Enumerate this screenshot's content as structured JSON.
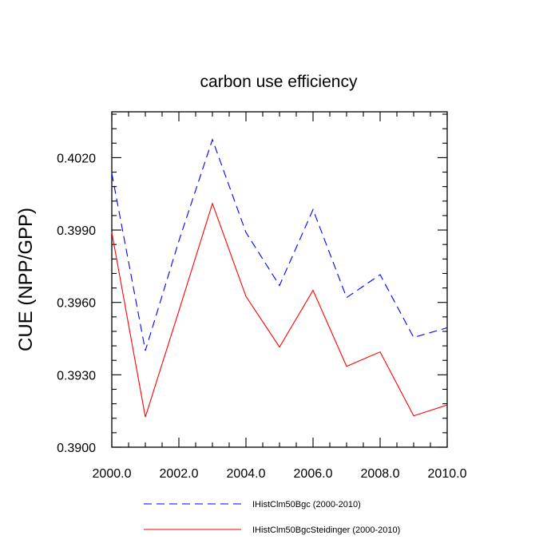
{
  "chart_data": {
    "type": "line",
    "title": "carbon use efficiency",
    "xlabel": "",
    "ylabel": "CUE  (NPP/GPP)",
    "xlim": [
      2000,
      2010
    ],
    "ylim": [
      0.39,
      0.4039
    ],
    "x_ticks": [
      2000,
      2002,
      2004,
      2006,
      2008,
      2010
    ],
    "x_tick_labels": [
      "2000.0",
      "2002.0",
      "2004.0",
      "2006.0",
      "2008.0",
      "2010.0"
    ],
    "y_ticks": [
      0.39,
      0.393,
      0.396,
      0.399,
      0.402
    ],
    "y_tick_labels": [
      "0.3900",
      "0.3930",
      "0.3960",
      "0.3990",
      "0.4020"
    ],
    "x": [
      2000,
      2001,
      2002,
      2003,
      2004,
      2005,
      2006,
      2007,
      2008,
      2009,
      2010
    ],
    "series": [
      {
        "name": "IHistClm50Bgc (2000-2010)",
        "values": [
          0.40135,
          0.394,
          0.39855,
          0.40275,
          0.3989,
          0.3967,
          0.39985,
          0.3962,
          0.39715,
          0.39455,
          0.39495
        ],
        "color": "#0000ff",
        "style": "dashed"
      },
      {
        "name": "IHistClm50BgcSteidinger (2000-2010)",
        "values": [
          0.3989,
          0.39125,
          0.39565,
          0.4001,
          0.39625,
          0.39415,
          0.3965,
          0.39335,
          0.39395,
          0.3913,
          0.39175
        ],
        "color": "#ff0000",
        "style": "solid"
      }
    ],
    "grid": false,
    "legend_position": "bottom"
  }
}
